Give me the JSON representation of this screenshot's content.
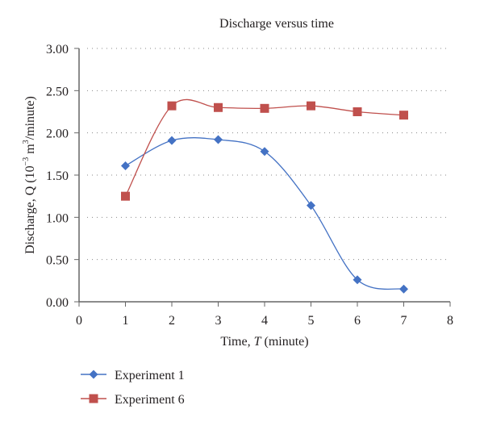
{
  "chart_data": {
    "type": "line",
    "title": "Discharge versus time",
    "xlabel_prefix": "Time, ",
    "xlabel_var": "T",
    "xlabel_suffix": " (minute)",
    "ylabel_prefix": "Discharge, Q (10",
    "ylabel_exp": "−3",
    "ylabel_mid": " m",
    "ylabel_exp2": "3",
    "ylabel_suffix": "/minute)",
    "xlim": [
      0,
      8
    ],
    "ylim": [
      0,
      3
    ],
    "x_ticks": [
      "0",
      "1",
      "2",
      "3",
      "4",
      "5",
      "6",
      "7",
      "8"
    ],
    "y_ticks": [
      "0.00",
      "0.50",
      "1.00",
      "1.50",
      "2.00",
      "2.50",
      "3.00"
    ],
    "grid": "horizontal-dotted",
    "legend_position": "bottom-left",
    "x": [
      1,
      2,
      3,
      4,
      5,
      6,
      7
    ],
    "series": [
      {
        "name": "Experiment 1",
        "marker": "diamond",
        "color": "#4472c4",
        "values": [
          1.61,
          1.91,
          1.92,
          1.78,
          1.14,
          0.26,
          0.15
        ]
      },
      {
        "name": "Experiment 6",
        "marker": "square",
        "color": "#c0504d",
        "values": [
          1.25,
          2.32,
          2.3,
          2.29,
          2.32,
          2.25,
          2.21
        ]
      }
    ]
  }
}
